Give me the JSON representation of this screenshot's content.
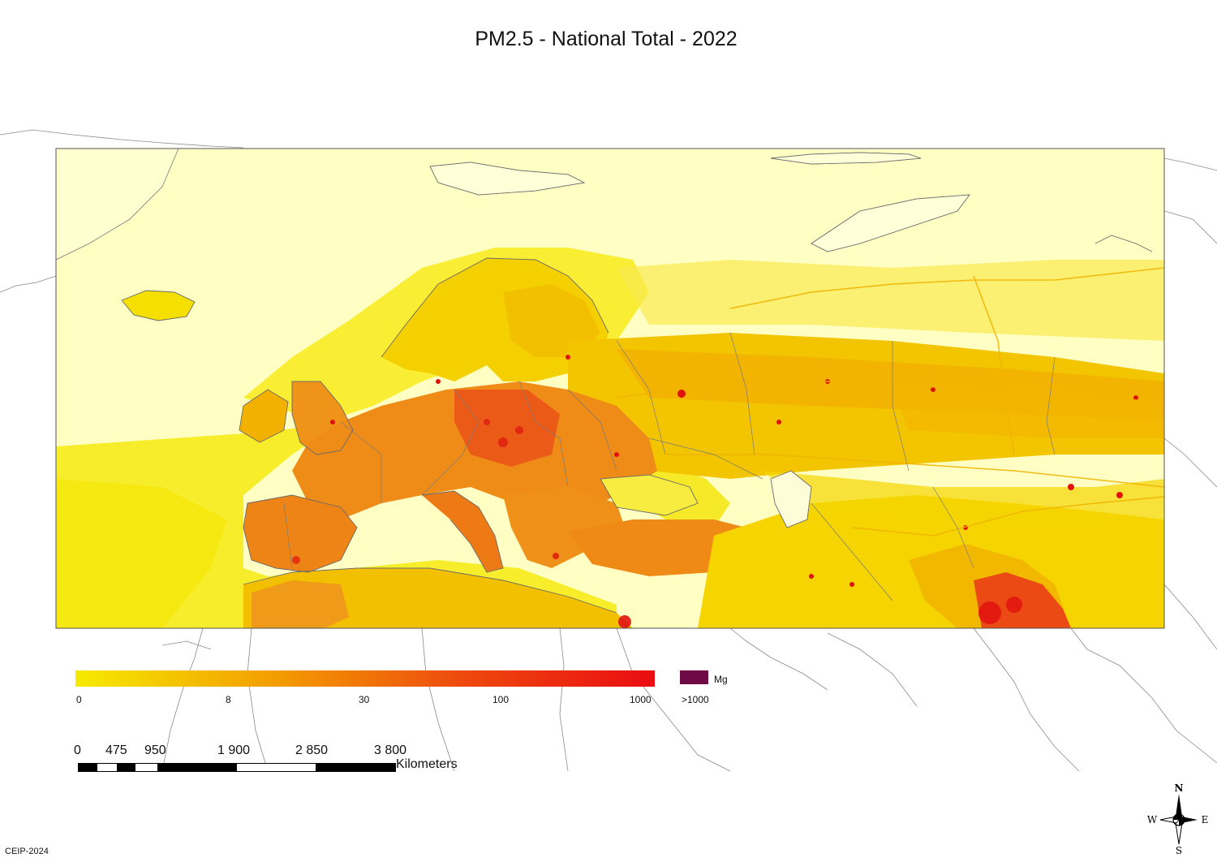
{
  "title": "PM2.5 - National Total - 2022",
  "legend": {
    "ticks": [
      "0",
      "8",
      "30",
      "100",
      "1000"
    ],
    "max_label": ">1000",
    "unit": "Mg",
    "gradient_colors": [
      "#f6ea00",
      "#f3a000",
      "#ee4a0e",
      "#ea0c12"
    ],
    "max_color": "#6e0a45"
  },
  "scale": {
    "values": [
      "0",
      "475",
      "950",
      "1 900",
      "2 850",
      "3 800"
    ],
    "unit": "Kilometers"
  },
  "compass": {
    "n": "N",
    "s": "S",
    "e": "E",
    "w": "W"
  },
  "credit": "CEIP-2024",
  "colors": {
    "background_fill": "#ffffc4",
    "sea_lanes": "#f7ea10",
    "low_emission": "#f4d600",
    "medium_emission": "#f29a12",
    "high_emission": "#ec5418",
    "hotspot": "#e0120e",
    "borders": "#7a7a7a"
  }
}
